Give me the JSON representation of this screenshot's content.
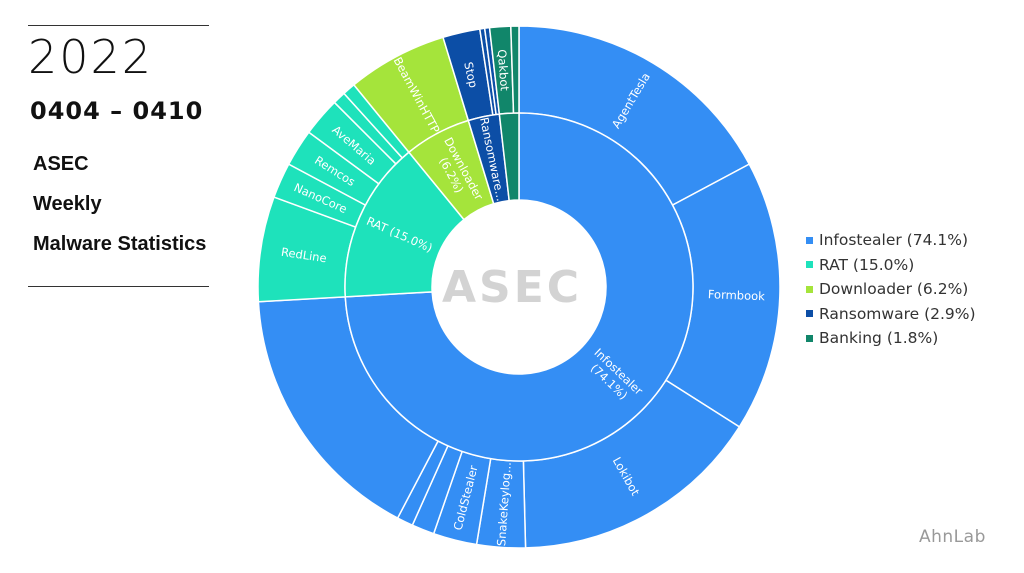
{
  "header": {
    "year": "2022",
    "date_range": "0404 – 0410",
    "subtitle_lines": [
      "ASEC",
      "Weekly",
      "Malware Statistics"
    ]
  },
  "brand": "AhnLab",
  "center_logo": "ASEC",
  "chart_data": {
    "type": "sunburst",
    "title": "",
    "legend_position": "right",
    "categories": [
      {
        "name": "Infostealer",
        "label": "Infostealer (74.1%)",
        "value": 74.1,
        "color": "#348ef4",
        "children": [
          {
            "name": "AgentTesla",
            "value": 17.2
          },
          {
            "name": "Formbook",
            "value": 16.8
          },
          {
            "name": "Lokibot",
            "value": 15.6
          },
          {
            "name": "SnakeKeylog...",
            "value": 3.0
          },
          {
            "name": "ColdStealer",
            "value": 2.7
          },
          {
            "name": "",
            "value": 1.4
          },
          {
            "name": "",
            "value": 1.0
          },
          {
            "name": "",
            "value": 16.4
          }
        ]
      },
      {
        "name": "RAT",
        "label": "RAT (15.0%)",
        "value": 15.0,
        "color": "#1ee2bb",
        "children": [
          {
            "name": "RedLine",
            "value": 6.5
          },
          {
            "name": "NanoCore",
            "value": 2.2
          },
          {
            "name": "Remcos",
            "value": 2.3
          },
          {
            "name": "AveMaria",
            "value": 2.4
          },
          {
            "name": "",
            "value": 0.8
          },
          {
            "name": "",
            "value": 0.8
          }
        ]
      },
      {
        "name": "Downloader",
        "label": "Downloader (6.2%)",
        "value": 6.2,
        "color": "#a5e43b",
        "children": [
          {
            "name": "BeamWinHTTP",
            "value": 6.2
          }
        ]
      },
      {
        "name": "Ransomware",
        "label": "Ransomware (2.9%)",
        "value": 2.9,
        "color": "#0c4ea6",
        "children": [
          {
            "name": "Stop",
            "value": 2.3
          },
          {
            "name": "",
            "value": 0.3
          },
          {
            "name": "",
            "value": 0.3
          }
        ]
      },
      {
        "name": "Banking",
        "label": "Banking (1.8%)",
        "value": 1.8,
        "color": "#11866a",
        "children": [
          {
            "name": "Qakbot",
            "value": 1.3
          },
          {
            "name": "",
            "value": 0.5
          }
        ]
      }
    ],
    "inner_labels": {
      "Infostealer": [
        "Infostealer",
        "(74.1%)"
      ],
      "RAT": [
        "RAT (15.0%)"
      ],
      "Downloader": [
        "Downloader",
        "(6.2%)"
      ],
      "Ransomware": [
        "Ransomware..."
      ],
      "Banking": []
    }
  }
}
